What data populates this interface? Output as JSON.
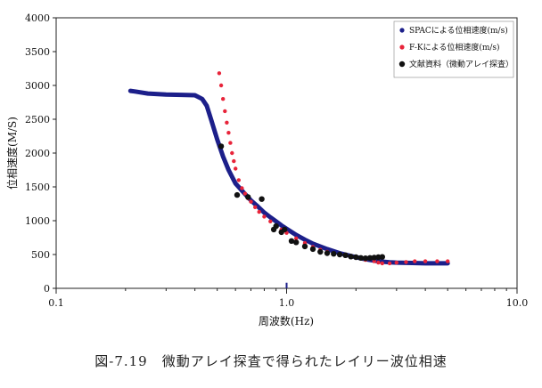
{
  "caption": "図-7.19　微動アレイ探査で得られたレイリー波位相速",
  "chart_data": {
    "type": "scatter",
    "xlabel": "周波数(Hz)",
    "ylabel": "位相速度(M/S)",
    "xscale": "log",
    "xlim": [
      0.1,
      10.0
    ],
    "ylim": [
      0,
      4000
    ],
    "xticks": [
      0.1,
      1.0,
      10.0
    ],
    "xtick_labels": [
      "0.1",
      "1.0",
      "10.0"
    ],
    "yticks": [
      0,
      500,
      1000,
      1500,
      2000,
      2500,
      3000,
      3500,
      4000
    ],
    "ytick_labels": [
      "0",
      "500",
      "1000",
      "1500",
      "2000",
      "2500",
      "3000",
      "3500",
      "4000"
    ],
    "grid": false,
    "legend_position": "top-right",
    "series": [
      {
        "name": "SPACによる位相速度(m/s)",
        "color": "#1c1f8a",
        "style": "thick-line",
        "x": [
          0.21,
          0.22,
          0.25,
          0.3,
          0.35,
          0.4,
          0.43,
          0.45,
          0.47,
          0.5,
          0.53,
          0.56,
          0.6,
          0.65,
          0.7,
          0.75,
          0.8,
          0.85,
          0.9,
          0.95,
          1.0,
          1.1,
          1.2,
          1.3,
          1.5,
          1.7,
          2.0,
          2.2,
          2.5,
          2.8,
          3.0,
          3.5,
          4.0,
          4.5,
          5.0
        ],
        "y": [
          2920,
          2910,
          2880,
          2865,
          2860,
          2855,
          2800,
          2700,
          2500,
          2200,
          1950,
          1750,
          1550,
          1420,
          1300,
          1210,
          1120,
          1050,
          990,
          930,
          880,
          790,
          720,
          660,
          580,
          520,
          460,
          430,
          400,
          385,
          380,
          375,
          370,
          370,
          370
        ]
      },
      {
        "name": "F-Kによる位相速度(m/s)",
        "color": "#e8243a",
        "style": "dots",
        "x": [
          0.51,
          0.52,
          0.53,
          0.54,
          0.55,
          0.56,
          0.57,
          0.58,
          0.59,
          0.6,
          0.62,
          0.64,
          0.66,
          0.68,
          0.7,
          0.73,
          0.76,
          0.8,
          0.85,
          0.9,
          0.95,
          1.0,
          1.1,
          1.2,
          1.3,
          1.4,
          1.5,
          1.6,
          1.7,
          1.8,
          2.0,
          2.2,
          2.4,
          2.5,
          2.6,
          2.8,
          3.0,
          3.3,
          3.6,
          4.0,
          4.5,
          5.0
        ],
        "y": [
          3180,
          3000,
          2800,
          2620,
          2450,
          2300,
          2150,
          2000,
          1880,
          1770,
          1600,
          1480,
          1400,
          1330,
          1280,
          1200,
          1130,
          1060,
          990,
          920,
          870,
          820,
          740,
          670,
          610,
          570,
          540,
          520,
          500,
          480,
          450,
          420,
          400,
          380,
          370,
          370,
          380,
          390,
          400,
          400,
          400,
          400
        ]
      },
      {
        "name": "文献資料（微動アレイ探査）",
        "color": "#111111",
        "style": "large-dots",
        "x": [
          0.52,
          0.61,
          0.68,
          0.78,
          0.88,
          0.9,
          0.95,
          0.98,
          1.05,
          1.1,
          1.2,
          1.3,
          1.4,
          1.5,
          1.6,
          1.7,
          1.8,
          1.9,
          2.0,
          2.1,
          2.2,
          2.3,
          2.4,
          2.5,
          2.6
        ],
        "y": [
          2100,
          1380,
          1350,
          1320,
          870,
          920,
          830,
          870,
          700,
          680,
          620,
          580,
          540,
          520,
          510,
          500,
          490,
          470,
          460,
          450,
          445,
          450,
          455,
          460,
          465
        ]
      }
    ],
    "annotations": [
      {
        "x": 1.0,
        "y": 30,
        "type": "small-tick"
      }
    ]
  }
}
